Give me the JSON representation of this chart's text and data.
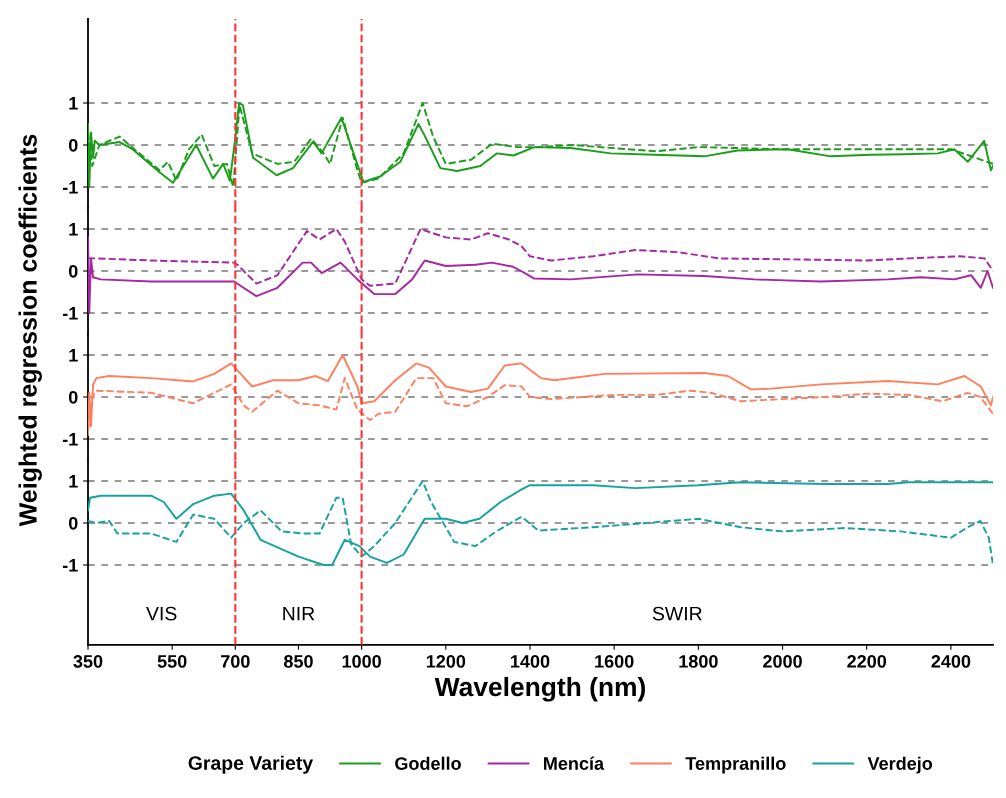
{
  "chart_data": [
    {
      "type": "line",
      "ylabel": "Weighted regression coefficients",
      "xlim": [
        350,
        2500
      ],
      "ylim": [
        -1.5,
        3
      ],
      "yticks": [
        -1,
        0,
        1
      ],
      "grid": "y",
      "tick_labels": "y",
      "ref_lines": [
        {
          "axis": "x",
          "value": 700,
          "color": "#ff3333",
          "line_style": "dashed"
        },
        {
          "axis": "x",
          "value": 1000,
          "color": "#ff3333",
          "line_style": "dashed"
        }
      ],
      "series": [
        {
          "name": "Godello",
          "color": "#1a9e1a",
          "line_style": "solid",
          "x": [
            350,
            353,
            357,
            362,
            366,
            377,
            425,
            456,
            520,
            552,
            607,
            647,
            671,
            687,
            698,
            709,
            718,
            742,
            798,
            837,
            885,
            905,
            952,
            1000,
            1004,
            1044,
            1092,
            1135,
            1151,
            1187,
            1227,
            1282,
            1321,
            1361,
            1410,
            1497,
            1592,
            1695,
            1814,
            1893,
            2012,
            2115,
            2210,
            2289,
            2369,
            2408,
            2440,
            2479,
            2495,
            2500
          ],
          "values": [
            0.5,
            -1.0,
            0.3,
            -0.3,
            0.1,
            0,
            0.07,
            -0.1,
            -0.65,
            -0.9,
            0,
            -0.8,
            -0.45,
            -0.85,
            0,
            1.0,
            0.95,
            -0.3,
            -0.72,
            -0.55,
            0.08,
            -0.2,
            0.65,
            -0.75,
            -0.88,
            -0.75,
            -0.4,
            0.5,
            0.2,
            -0.55,
            -0.62,
            -0.5,
            -0.2,
            -0.25,
            -0.05,
            -0.07,
            -0.2,
            -0.23,
            -0.27,
            -0.13,
            -0.1,
            -0.27,
            -0.23,
            -0.22,
            -0.2,
            -0.1,
            -0.4,
            0.1,
            -0.6,
            -0.5
          ]
        },
        {
          "color": "#1a9e1a",
          "line_style": "dashed",
          "x": [
            350,
            360,
            377,
            425,
            460,
            520,
            540,
            560,
            590,
            620,
            650,
            680,
            695,
            710,
            740,
            800,
            840,
            880,
            910,
            925,
            955,
            990,
            1000,
            1040,
            1100,
            1145,
            1170,
            1200,
            1260,
            1310,
            1370,
            1420,
            1500,
            1700,
            1800,
            2000,
            2400,
            2500
          ],
          "values": [
            0.3,
            -0.5,
            0,
            0.2,
            -0.1,
            -0.6,
            -0.4,
            -0.85,
            -0.1,
            0.25,
            -0.5,
            -0.45,
            -1.0,
            0.95,
            -0.2,
            -0.45,
            -0.4,
            0.15,
            -0.2,
            -0.45,
            0.65,
            -0.6,
            -0.9,
            -0.8,
            -0.2,
            1.0,
            0.2,
            -0.45,
            -0.35,
            0.03,
            -0.05,
            -0.05,
            0,
            -0.15,
            -0.05,
            -0.1,
            -0.1,
            -0.45
          ]
        }
      ]
    },
    {
      "type": "line",
      "xlim": [
        350,
        2500
      ],
      "ylim": [
        -1.5,
        1.5
      ],
      "yticks": [
        -1,
        0,
        1
      ],
      "grid": "y",
      "tick_labels": "y",
      "ref_lines": [
        {
          "axis": "x",
          "value": 700,
          "color": "#ff3333",
          "line_style": "dashed"
        },
        {
          "axis": "x",
          "value": 1000,
          "color": "#ff3333",
          "line_style": "dashed"
        }
      ],
      "series": [
        {
          "name": "Mencía",
          "color": "#a626a4",
          "line_style": "solid",
          "x": [
            350,
            353,
            357,
            362,
            380,
            500,
            600,
            697,
            750,
            800,
            860,
            880,
            905,
            950,
            990,
            1030,
            1080,
            1120,
            1150,
            1200,
            1270,
            1310,
            1360,
            1379,
            1410,
            1497,
            1656,
            1814,
            1933,
            2091,
            2250,
            2329,
            2408,
            2448,
            2471,
            2487,
            2500
          ],
          "values": [
            0.8,
            -1.0,
            0.3,
            -0.15,
            -0.2,
            -0.25,
            -0.25,
            -0.25,
            -0.6,
            -0.4,
            0.2,
            0.2,
            -0.05,
            0.2,
            -0.2,
            -0.55,
            -0.55,
            -0.2,
            0.25,
            0.12,
            0.15,
            0.2,
            0.1,
            0.0,
            -0.18,
            -0.2,
            -0.08,
            -0.12,
            -0.2,
            -0.25,
            -0.2,
            -0.15,
            -0.2,
            -0.1,
            -0.4,
            0.0,
            -0.4
          ]
        },
        {
          "color": "#a626a4",
          "line_style": "dashed",
          "x": [
            350,
            370,
            500,
            697,
            705,
            750,
            800,
            870,
            900,
            940,
            960,
            1000,
            1020,
            1080,
            1140,
            1200,
            1260,
            1300,
            1350,
            1379,
            1400,
            1450,
            1550,
            1650,
            1750,
            1850,
            2000,
            2200,
            2300,
            2420,
            2480,
            2500
          ],
          "values": [
            0.3,
            0.3,
            0.25,
            0.2,
            0.15,
            -0.3,
            -0.1,
            0.95,
            0.75,
            1.0,
            0.7,
            -0.2,
            -0.35,
            -0.3,
            1.0,
            0.8,
            0.75,
            0.9,
            0.75,
            0.6,
            0.35,
            0.25,
            0.35,
            0.5,
            0.45,
            0.3,
            0.28,
            0.25,
            0.3,
            0.35,
            0.3,
            0.0
          ]
        }
      ]
    },
    {
      "type": "line",
      "xlim": [
        350,
        2500
      ],
      "ylim": [
        -1.5,
        1.5
      ],
      "yticks": [
        -1,
        0,
        1
      ],
      "grid": "y",
      "tick_labels": "y",
      "ref_lines": [
        {
          "axis": "x",
          "value": 700,
          "color": "#ff3333",
          "line_style": "dashed"
        },
        {
          "axis": "x",
          "value": 1000,
          "color": "#ff3333",
          "line_style": "dashed"
        }
      ],
      "series": [
        {
          "name": "Tempranillo",
          "color": "#ff7f5e",
          "line_style": "solid",
          "x": [
            350,
            353,
            357,
            362,
            370,
            400,
            500,
            600,
            650,
            690,
            740,
            790,
            850,
            890,
            920,
            955,
            990,
            1000,
            1030,
            1080,
            1130,
            1160,
            1200,
            1260,
            1300,
            1340,
            1380,
            1426,
            1458,
            1577,
            1814,
            1870,
            1925,
            1973,
            2091,
            2250,
            2369,
            2432,
            2471,
            2495,
            2500
          ],
          "values": [
            -0.9,
            0.1,
            -0.7,
            0.3,
            0.45,
            0.5,
            0.45,
            0.37,
            0.55,
            0.8,
            0.25,
            0.4,
            0.4,
            0.5,
            0.38,
            1.0,
            0.25,
            -0.15,
            -0.1,
            0.4,
            0.8,
            0.7,
            0.25,
            0.12,
            0.2,
            0.75,
            0.8,
            0.45,
            0.4,
            0.55,
            0.57,
            0.5,
            0.18,
            0.2,
            0.3,
            0.38,
            0.3,
            0.5,
            0.25,
            -0.2,
            0.0
          ]
        },
        {
          "color": "#ff7f5e",
          "line_style": "dashed",
          "x": [
            350,
            360,
            370,
            500,
            600,
            690,
            720,
            740,
            800,
            850,
            900,
            940,
            960,
            990,
            1020,
            1040,
            1080,
            1130,
            1170,
            1200,
            1250,
            1300,
            1340,
            1380,
            1400,
            1450,
            1600,
            1700,
            1780,
            1830,
            1900,
            2000,
            2100,
            2200,
            2300,
            2380,
            2440,
            2470,
            2500
          ],
          "values": [
            -0.8,
            0.0,
            0.15,
            0.1,
            -0.15,
            0.3,
            -0.2,
            -0.35,
            0.15,
            -0.15,
            -0.2,
            -0.3,
            0.45,
            -0.3,
            -0.55,
            -0.4,
            -0.35,
            0.45,
            0.45,
            -0.15,
            -0.22,
            0.0,
            0.28,
            0.25,
            0.0,
            -0.05,
            0.05,
            0.05,
            0.15,
            0.1,
            -0.1,
            -0.05,
            0.0,
            0.08,
            0.05,
            -0.1,
            0.1,
            0.0,
            -0.4
          ]
        }
      ]
    },
    {
      "type": "line",
      "xlabel": "Wavelength (nm)",
      "xlim": [
        350,
        2500
      ],
      "xticks": [
        350,
        550,
        700,
        850,
        1000,
        1200,
        1400,
        1600,
        1800,
        2000,
        2200,
        2400
      ],
      "ylim": [
        -2.9,
        1.5
      ],
      "yticks": [
        -1,
        0,
        1
      ],
      "grid": "y",
      "legend": "bottom",
      "legend_title": "Grape Variety",
      "ref_lines": [
        {
          "axis": "x",
          "value": 700,
          "color": "#ff3333",
          "line_style": "dashed"
        },
        {
          "axis": "x",
          "value": 1000,
          "color": "#ff3333",
          "line_style": "dashed"
        }
      ],
      "annotations": [
        "VIS",
        "NIR",
        "SWIR"
      ],
      "series": [
        {
          "name": "Verdejo",
          "color": "#17a2a2",
          "line_style": "solid",
          "x": [
            350,
            355,
            380,
            500,
            530,
            560,
            600,
            650,
            690,
            720,
            760,
            850,
            910,
            930,
            960,
            995,
            1020,
            1060,
            1100,
            1150,
            1200,
            1240,
            1280,
            1330,
            1380,
            1400,
            1550,
            1650,
            1800,
            1900,
            2100,
            2250,
            2300,
            2500
          ],
          "values": [
            0.3,
            0.6,
            0.65,
            0.65,
            0.5,
            0.1,
            0.45,
            0.65,
            0.7,
            0.3,
            -0.4,
            -0.8,
            -1.0,
            -1.0,
            -0.4,
            -0.55,
            -0.8,
            -0.95,
            -0.75,
            0.1,
            0.1,
            0.0,
            0.1,
            0.5,
            0.8,
            0.9,
            0.9,
            0.83,
            0.9,
            0.97,
            0.93,
            0.93,
            0.97,
            0.97
          ]
        },
        {
          "color": "#17a2a2",
          "line_style": "dashed",
          "x": [
            350,
            370,
            400,
            420,
            500,
            560,
            600,
            650,
            690,
            720,
            760,
            810,
            860,
            900,
            940,
            955,
            975,
            1000,
            1030,
            1080,
            1145,
            1165,
            1220,
            1270,
            1320,
            1380,
            1420,
            1550,
            1800,
            1900,
            2000,
            2150,
            2280,
            2400,
            2440,
            2470,
            2490,
            2500
          ],
          "values": [
            0.05,
            0.0,
            0.05,
            -0.25,
            -0.25,
            -0.45,
            0.2,
            0.1,
            -0.35,
            0.0,
            0.3,
            -0.2,
            -0.25,
            -0.25,
            0.6,
            0.6,
            -0.5,
            -0.8,
            -0.55,
            0.0,
            1.0,
            0.5,
            -0.45,
            -0.55,
            -0.2,
            0.15,
            -0.18,
            -0.1,
            0.1,
            -0.1,
            -0.2,
            -0.12,
            -0.2,
            -0.35,
            -0.1,
            0.05,
            -0.35,
            -1.0
          ]
        }
      ]
    }
  ]
}
